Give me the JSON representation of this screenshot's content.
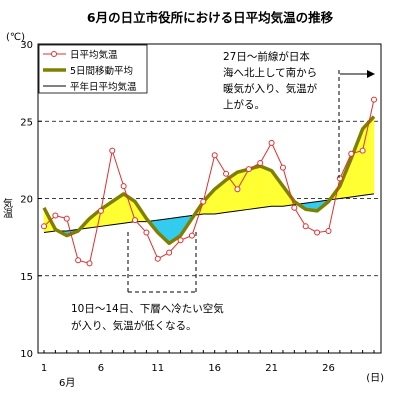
{
  "chart_data": {
    "type": "line",
    "title": "6月の日立市役所における日平均気温の推移",
    "ylabel": "気温",
    "yunit": "(℃)",
    "xunit": "(日)",
    "month_label": "6月",
    "ylim": [
      10,
      30
    ],
    "xlim": [
      1,
      30
    ],
    "yticks": [
      10,
      15,
      20,
      25,
      30
    ],
    "xticks": [
      1,
      6,
      11,
      16,
      21,
      26
    ],
    "dashed_gridlines": [
      15,
      20,
      25
    ],
    "x": [
      1,
      2,
      3,
      4,
      5,
      6,
      7,
      8,
      9,
      10,
      11,
      12,
      13,
      14,
      15,
      16,
      17,
      18,
      19,
      20,
      21,
      22,
      23,
      24,
      25,
      26,
      27,
      28,
      29,
      30
    ],
    "series": [
      {
        "name": "日平均気温",
        "color": "#e03030",
        "values": [
          18.2,
          18.9,
          18.7,
          16.0,
          15.8,
          19.2,
          23.1,
          20.8,
          18.6,
          17.8,
          16.1,
          16.5,
          17.3,
          17.6,
          19.8,
          22.8,
          21.6,
          20.6,
          21.9,
          22.3,
          23.6,
          22.0,
          19.4,
          18.2,
          17.8,
          17.9,
          21.3,
          22.9,
          23.1,
          26.4
        ]
      },
      {
        "name": "5日間移動平均",
        "color": "#808000",
        "values": [
          19.4,
          18.0,
          17.6,
          17.9,
          18.7,
          19.3,
          19.8,
          20.3,
          19.8,
          18.7,
          17.8,
          17.1,
          17.6,
          18.7,
          19.8,
          20.6,
          21.2,
          21.7,
          21.9,
          22.1,
          21.8,
          20.8,
          19.8,
          19.3,
          19.2,
          19.8,
          20.8,
          22.6,
          24.5,
          25.3
        ]
      },
      {
        "name": "平年日平均気温",
        "color": "#000000",
        "values": [
          17.8,
          17.9,
          17.9,
          18.0,
          18.1,
          18.2,
          18.3,
          18.4,
          18.5,
          18.5,
          18.6,
          18.7,
          18.8,
          18.9,
          19.0,
          19.0,
          19.1,
          19.2,
          19.3,
          19.4,
          19.5,
          19.5,
          19.6,
          19.7,
          19.8,
          19.9,
          20.0,
          20.1,
          20.2,
          20.3
        ]
      }
    ],
    "fill_colors": {
      "above_normal": "#ffff33",
      "below_normal": "#33ccee"
    },
    "legend_position": "top-left",
    "annotations": {
      "warm": [
        "27日～前線が日本",
        "海へ北上して南から",
        "暖気が入り、気温が",
        "上がる。"
      ],
      "cold": [
        "10日～14日、下層へ冷たい空気",
        "が入り、気温が低くなる。"
      ]
    }
  }
}
